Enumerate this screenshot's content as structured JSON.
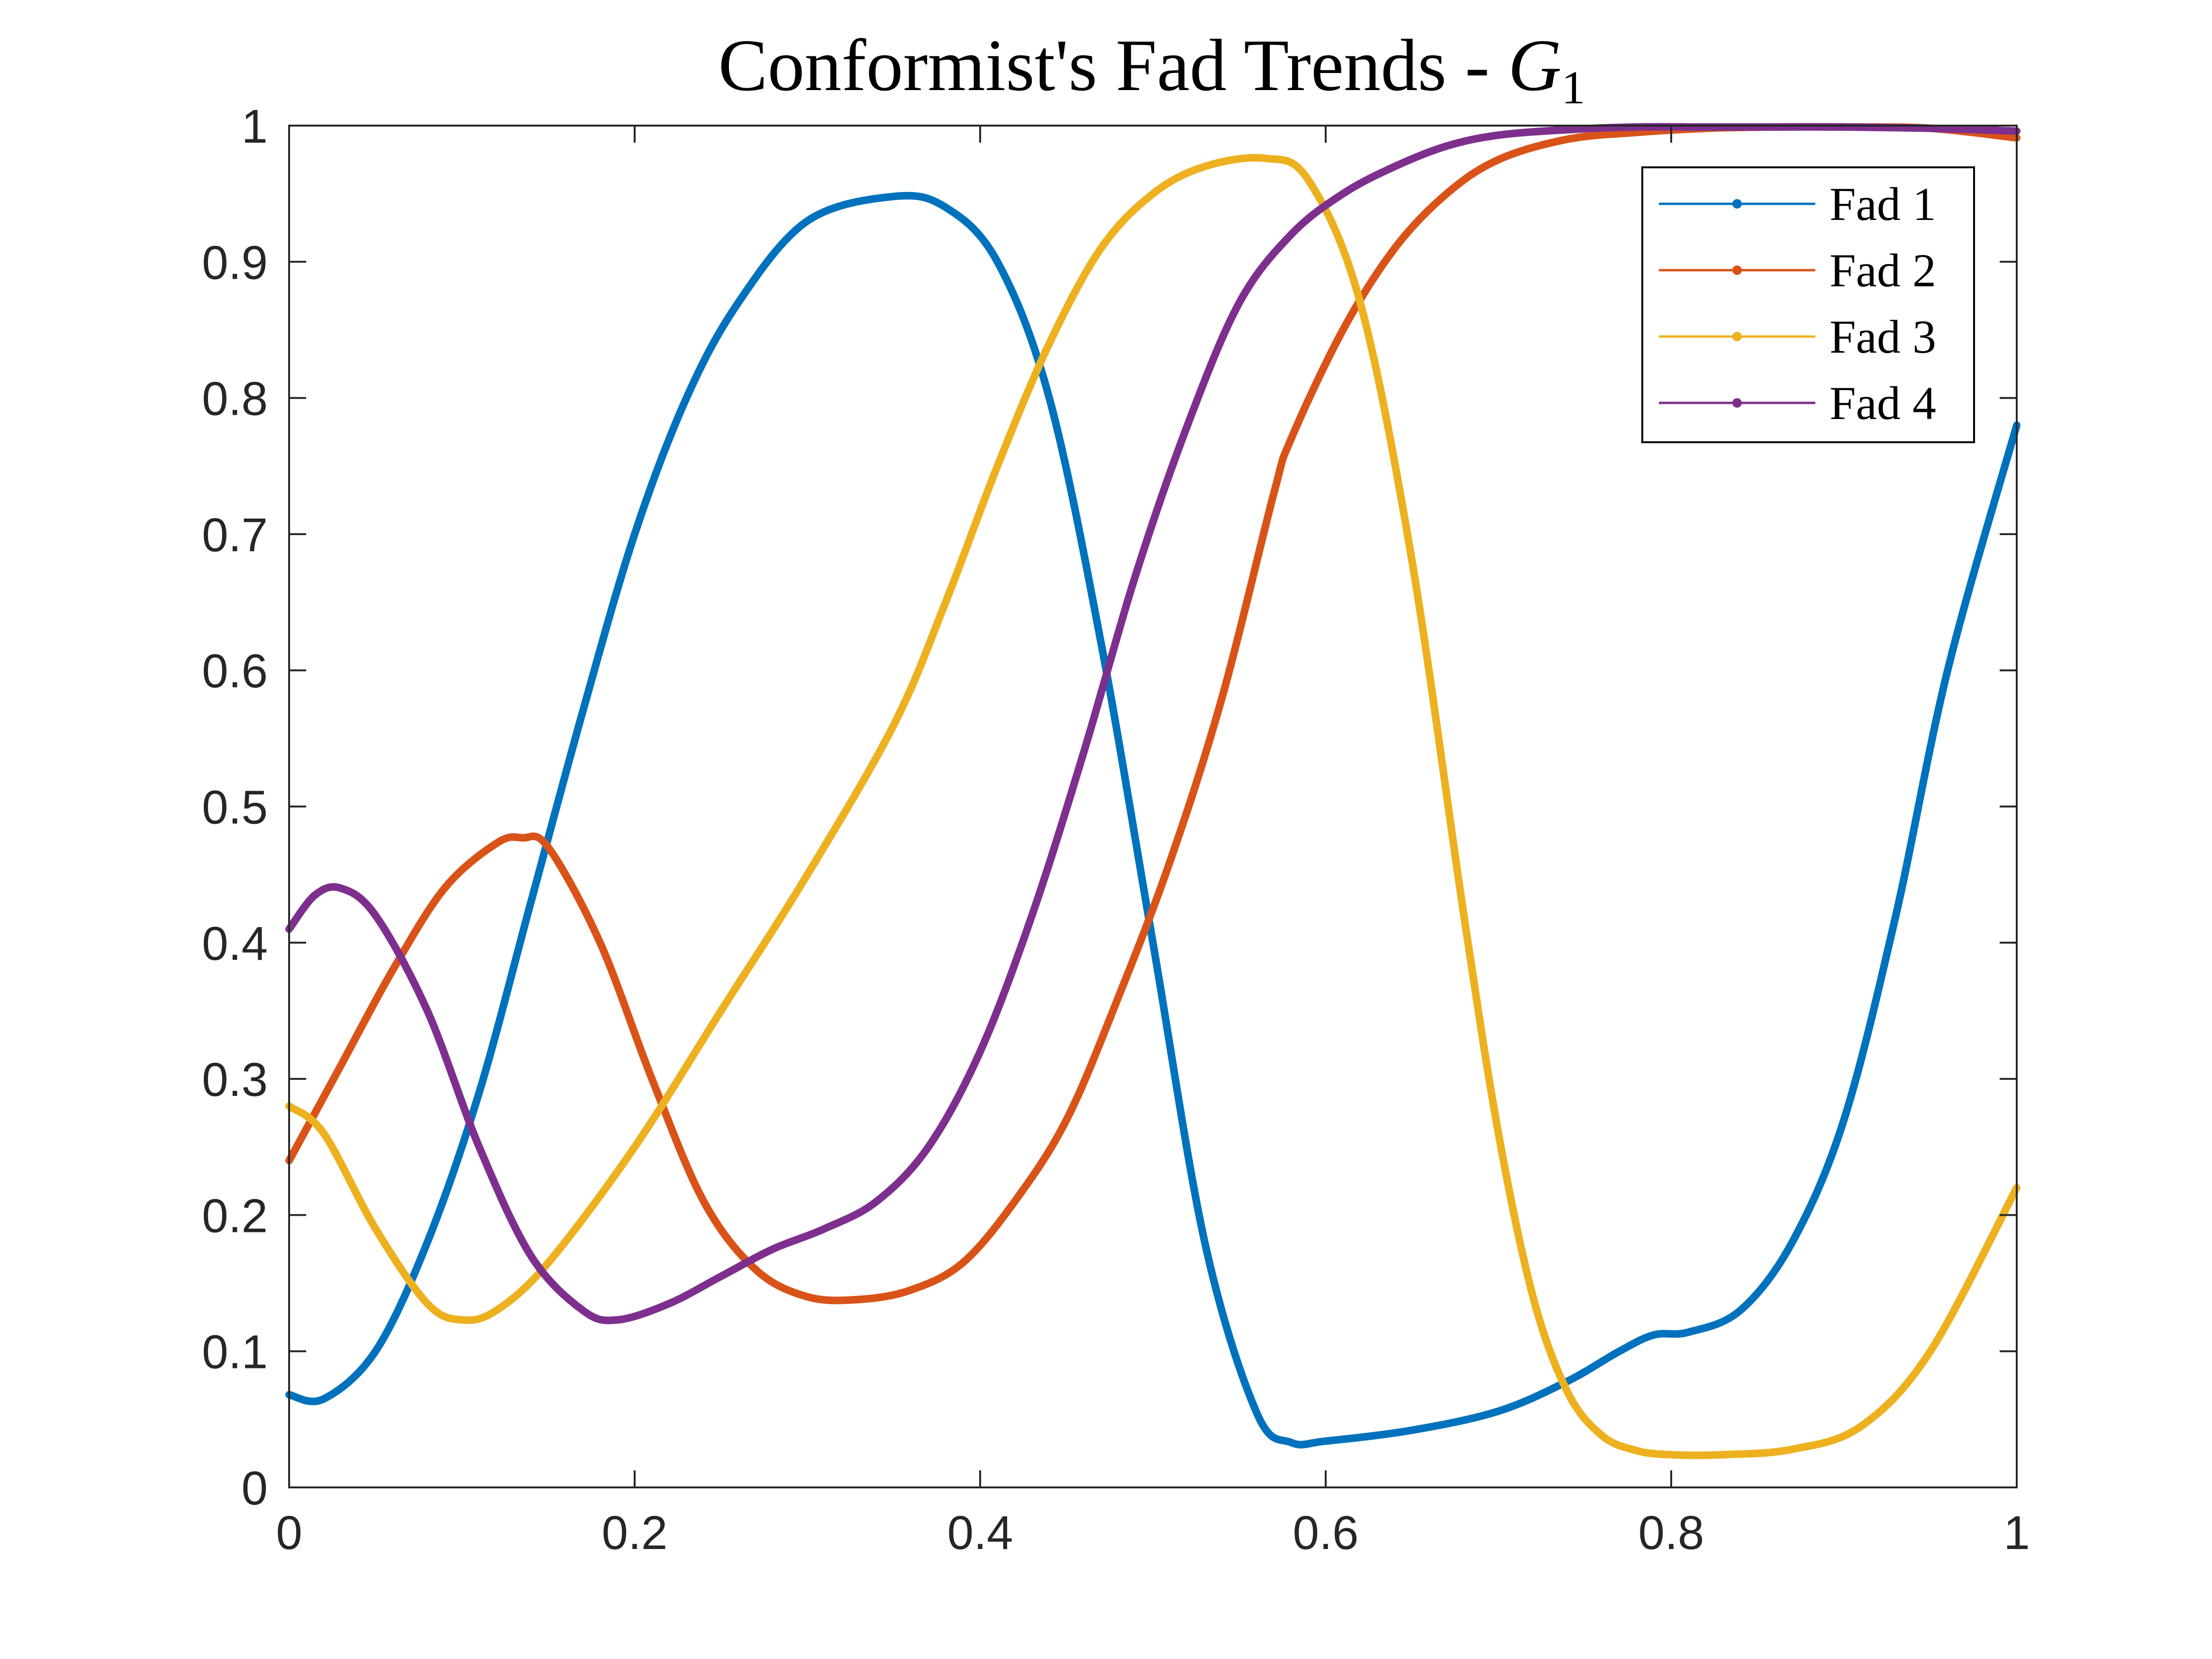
{
  "chart_data": {
    "type": "line",
    "title": {
      "main": "Conformist's Fad Trends - ",
      "var": "G",
      "sub": "1"
    },
    "xlabel": "",
    "ylabel": "",
    "xlim": [
      0,
      1
    ],
    "ylim": [
      0,
      1
    ],
    "xticks": [
      0,
      0.2,
      0.4,
      0.6,
      0.8,
      1
    ],
    "xtick_labels": [
      "0",
      "0.2",
      "0.4",
      "0.6",
      "0.8",
      "1"
    ],
    "yticks": [
      0,
      0.1,
      0.2,
      0.3,
      0.4,
      0.5,
      0.6,
      0.7,
      0.8,
      0.9,
      1
    ],
    "ytick_labels": [
      "0",
      "0.1",
      "0.2",
      "0.3",
      "0.4",
      "0.5",
      "0.6",
      "0.7",
      "0.8",
      "0.9",
      "1"
    ],
    "grid": false,
    "legend": {
      "position": "top-right",
      "marker": "dot"
    },
    "series": [
      {
        "name": "Fad 1",
        "color": "#0072BD",
        "x": [
          0,
          0.02,
          0.05,
          0.08,
          0.11,
          0.14,
          0.17,
          0.2,
          0.23,
          0.26,
          0.3,
          0.35,
          0.38,
          0.41,
          0.44,
          0.47,
          0.5,
          0.53,
          0.56,
          0.58,
          0.6,
          0.65,
          0.7,
          0.74,
          0.77,
          0.79,
          0.81,
          0.84,
          0.87,
          0.9,
          0.93,
          0.96,
          1.0
        ],
        "y": [
          0.068,
          0.065,
          0.1,
          0.18,
          0.29,
          0.43,
          0.57,
          0.7,
          0.8,
          0.87,
          0.93,
          0.948,
          0.94,
          0.9,
          0.8,
          0.62,
          0.4,
          0.18,
          0.055,
          0.033,
          0.034,
          0.042,
          0.056,
          0.078,
          0.1,
          0.112,
          0.114,
          0.13,
          0.18,
          0.27,
          0.42,
          0.6,
          0.78
        ]
      },
      {
        "name": "Fad 2",
        "color": "#D95319",
        "x": [
          0,
          0.03,
          0.06,
          0.09,
          0.12,
          0.135,
          0.15,
          0.18,
          0.21,
          0.24,
          0.27,
          0.3,
          0.33,
          0.36,
          0.39,
          0.42,
          0.45,
          0.48,
          0.51,
          0.54,
          0.57,
          0.58,
          0.61,
          0.64,
          0.67,
          0.7,
          0.74,
          0.78,
          0.82,
          0.86,
          0.9,
          0.95,
          1.0
        ],
        "y": [
          0.24,
          0.31,
          0.38,
          0.44,
          0.473,
          0.477,
          0.47,
          0.4,
          0.3,
          0.21,
          0.16,
          0.14,
          0.138,
          0.145,
          0.165,
          0.21,
          0.27,
          0.36,
          0.46,
          0.58,
          0.73,
          0.77,
          0.85,
          0.91,
          0.95,
          0.975,
          0.99,
          0.995,
          0.998,
          0.999,
          0.999,
          0.998,
          0.991
        ]
      },
      {
        "name": "Fad 3",
        "color": "#EDB120",
        "x": [
          0,
          0.02,
          0.05,
          0.08,
          0.1,
          0.12,
          0.15,
          0.2,
          0.25,
          0.3,
          0.35,
          0.38,
          0.41,
          0.44,
          0.47,
          0.5,
          0.53,
          0.565,
          0.59,
          0.62,
          0.65,
          0.68,
          0.7,
          0.72,
          0.74,
          0.76,
          0.78,
          0.8,
          0.83,
          0.87,
          0.91,
          0.95,
          1.0
        ],
        "y": [
          0.28,
          0.26,
          0.19,
          0.135,
          0.123,
          0.13,
          0.165,
          0.25,
          0.35,
          0.45,
          0.56,
          0.65,
          0.75,
          0.84,
          0.91,
          0.95,
          0.97,
          0.976,
          0.96,
          0.87,
          0.68,
          0.42,
          0.26,
          0.14,
          0.07,
          0.038,
          0.027,
          0.024,
          0.024,
          0.028,
          0.045,
          0.1,
          0.22
        ]
      },
      {
        "name": "Fad 4",
        "color": "#7E2F8E",
        "x": [
          0,
          0.015,
          0.03,
          0.05,
          0.08,
          0.11,
          0.14,
          0.17,
          0.19,
          0.22,
          0.25,
          0.28,
          0.31,
          0.34,
          0.37,
          0.4,
          0.43,
          0.46,
          0.49,
          0.52,
          0.55,
          0.58,
          0.61,
          0.64,
          0.67,
          0.7,
          0.74,
          0.78,
          0.82,
          0.86,
          0.9,
          0.95,
          1.0
        ],
        "y": [
          0.41,
          0.435,
          0.44,
          0.42,
          0.35,
          0.25,
          0.17,
          0.13,
          0.123,
          0.135,
          0.155,
          0.175,
          0.19,
          0.21,
          0.25,
          0.32,
          0.42,
          0.54,
          0.67,
          0.78,
          0.87,
          0.92,
          0.95,
          0.97,
          0.985,
          0.993,
          0.997,
          0.999,
          0.999,
          0.999,
          0.999,
          0.998,
          0.996
        ]
      }
    ]
  }
}
